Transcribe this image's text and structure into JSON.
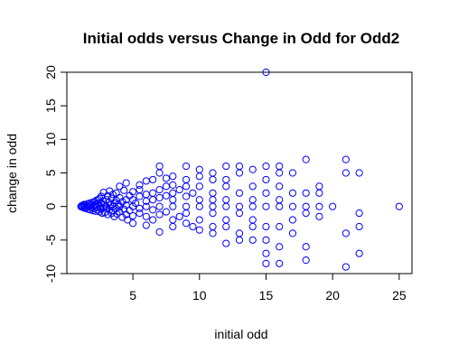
{
  "chart_data": {
    "type": "scatter",
    "title": "Initial odds versus Change in Odd for Odd2",
    "xlabel": "initial odd",
    "ylabel": "change in odd",
    "xlim": [
      0.04,
      25.96
    ],
    "ylim": [
      -10.0,
      20.0
    ],
    "x_ticks": [
      5,
      10,
      15,
      20,
      25
    ],
    "y_ticks": [
      -10,
      -5,
      0,
      5,
      10,
      15,
      20
    ],
    "x_tick_labels": [
      "5",
      "10",
      "15",
      "20",
      "25"
    ],
    "y_tick_labels": [
      "-10",
      "-5",
      "0",
      "5",
      "10",
      "15",
      "20"
    ],
    "marker": "open-circle",
    "color": "#0000ff",
    "grid": false,
    "legend": "none",
    "points": [
      [
        1.1,
        0.0
      ],
      [
        1.15,
        0.1
      ],
      [
        1.2,
        -0.1
      ],
      [
        1.25,
        0.2
      ],
      [
        1.3,
        -0.2
      ],
      [
        1.35,
        0.3
      ],
      [
        1.4,
        0.0
      ],
      [
        1.45,
        -0.3
      ],
      [
        1.5,
        0.2
      ],
      [
        1.55,
        -0.1
      ],
      [
        1.6,
        0.4
      ],
      [
        1.65,
        -0.4
      ],
      [
        1.7,
        0.1
      ],
      [
        1.75,
        0.5
      ],
      [
        1.8,
        -0.5
      ],
      [
        1.85,
        0.2
      ],
      [
        1.9,
        -0.2
      ],
      [
        1.95,
        0.6
      ],
      [
        2.0,
        0.0
      ],
      [
        2.0,
        -0.6
      ],
      [
        2.1,
        0.7
      ],
      [
        2.1,
        -0.3
      ],
      [
        2.2,
        0.3
      ],
      [
        2.2,
        -0.7
      ],
      [
        2.25,
        0.9
      ],
      [
        2.3,
        -0.1
      ],
      [
        2.37,
        0.5
      ],
      [
        2.37,
        -0.5
      ],
      [
        2.4,
        1.0
      ],
      [
        2.5,
        0.0
      ],
      [
        2.5,
        -0.8
      ],
      [
        2.5,
        1.2
      ],
      [
        2.6,
        0.4
      ],
      [
        2.62,
        -0.4
      ],
      [
        2.62,
        1.5
      ],
      [
        2.7,
        -1.0
      ],
      [
        2.75,
        0.8
      ],
      [
        2.75,
        -0.2
      ],
      [
        2.8,
        2.1
      ],
      [
        2.88,
        0.3
      ],
      [
        2.88,
        -0.9
      ],
      [
        3.0,
        1.0
      ],
      [
        3.0,
        -0.3
      ],
      [
        3.0,
        0.0
      ],
      [
        3.1,
        1.6
      ],
      [
        3.1,
        -1.2
      ],
      [
        3.2,
        0.6
      ],
      [
        3.25,
        -0.5
      ],
      [
        3.25,
        2.3
      ],
      [
        3.3,
        0.2
      ],
      [
        3.4,
        -1.0
      ],
      [
        3.4,
        1.2
      ],
      [
        3.5,
        0.0
      ],
      [
        3.5,
        -0.6
      ],
      [
        3.5,
        1.8
      ],
      [
        3.6,
        0.5
      ],
      [
        3.6,
        -1.5
      ],
      [
        3.75,
        0.9
      ],
      [
        3.75,
        -0.3
      ],
      [
        3.75,
        2.0
      ],
      [
        3.8,
        -1.1
      ],
      [
        3.9,
        0.3
      ],
      [
        4.0,
        1.3
      ],
      [
        4.0,
        -0.8
      ],
      [
        4.0,
        3.0
      ],
      [
        4.0,
        0.0
      ],
      [
        4.2,
        -1.6
      ],
      [
        4.2,
        0.7
      ],
      [
        4.33,
        2.4
      ],
      [
        4.33,
        -0.4
      ],
      [
        4.5,
        1.0
      ],
      [
        4.5,
        -1.2
      ],
      [
        4.5,
        3.5
      ],
      [
        4.5,
        0.2
      ],
      [
        4.6,
        -2.0
      ],
      [
        4.75,
        1.6
      ],
      [
        4.75,
        -0.6
      ],
      [
        5.0,
        0.0
      ],
      [
        5.0,
        2.2
      ],
      [
        5.0,
        -1.4
      ],
      [
        5.0,
        1.0
      ],
      [
        5.0,
        -2.5
      ],
      [
        5.2,
        0.5
      ],
      [
        5.5,
        1.5
      ],
      [
        5.5,
        -1.0
      ],
      [
        5.5,
        3.2
      ],
      [
        5.5,
        -0.3
      ],
      [
        5.5,
        2.5
      ],
      [
        6.0,
        0.0
      ],
      [
        6.0,
        1.8
      ],
      [
        6.0,
        -1.5
      ],
      [
        6.0,
        3.8
      ],
      [
        6.0,
        -2.8
      ],
      [
        6.0,
        0.8
      ],
      [
        6.5,
        2.0
      ],
      [
        6.5,
        -0.5
      ],
      [
        6.5,
        4.0
      ],
      [
        6.5,
        -2.0
      ],
      [
        6.5,
        1.0
      ],
      [
        7.0,
        0.0
      ],
      [
        7.0,
        2.5
      ],
      [
        7.0,
        -1.2
      ],
      [
        7.0,
        5.0
      ],
      [
        7.0,
        -3.8
      ],
      [
        7.0,
        6.0
      ],
      [
        7.0,
        1.3
      ],
      [
        7.5,
        3.0
      ],
      [
        7.5,
        -0.8
      ],
      [
        7.5,
        4.2
      ],
      [
        7.5,
        1.6
      ],
      [
        8.0,
        0.0
      ],
      [
        8.0,
        2.0
      ],
      [
        8.0,
        -2.0
      ],
      [
        8.0,
        4.5
      ],
      [
        8.0,
        -3.0
      ],
      [
        8.0,
        1.0
      ],
      [
        8.0,
        3.2
      ],
      [
        8.5,
        2.5
      ],
      [
        8.5,
        -1.5
      ],
      [
        9.0,
        0.0
      ],
      [
        9.0,
        3.0
      ],
      [
        9.0,
        -2.5
      ],
      [
        9.0,
        6.0
      ],
      [
        9.0,
        -1.0
      ],
      [
        9.0,
        4.0
      ],
      [
        9.0,
        1.5
      ],
      [
        9.5,
        -3.0
      ],
      [
        9.5,
        2.0
      ],
      [
        10.0,
        0.0
      ],
      [
        10.0,
        4.5
      ],
      [
        10.0,
        -2.0
      ],
      [
        10.0,
        5.5
      ],
      [
        10.0,
        1.0
      ],
      [
        10.0,
        -3.5
      ],
      [
        10.0,
        3.0
      ],
      [
        11.0,
        0.0
      ],
      [
        11.0,
        2.0
      ],
      [
        11.0,
        -1.0
      ],
      [
        11.0,
        4.0
      ],
      [
        11.0,
        -3.0
      ],
      [
        11.0,
        5.0
      ],
      [
        11.0,
        1.0
      ],
      [
        11.0,
        -4.0
      ],
      [
        12.0,
        0.0
      ],
      [
        12.0,
        3.0
      ],
      [
        12.0,
        -2.0
      ],
      [
        12.0,
        6.0
      ],
      [
        12.0,
        -3.0
      ],
      [
        12.0,
        1.0
      ],
      [
        12.0,
        4.0
      ],
      [
        12.0,
        -5.5
      ],
      [
        13.0,
        0.0
      ],
      [
        13.0,
        2.0
      ],
      [
        13.0,
        -4.0
      ],
      [
        13.0,
        5.0
      ],
      [
        13.0,
        -1.0
      ],
      [
        13.0,
        6.0
      ],
      [
        13.0,
        -5.0
      ],
      [
        14.0,
        0.0
      ],
      [
        14.0,
        3.0
      ],
      [
        14.0,
        -2.0
      ],
      [
        14.0,
        5.5
      ],
      [
        14.0,
        -3.0
      ],
      [
        14.0,
        1.0
      ],
      [
        14.0,
        -5.0
      ],
      [
        15.0,
        0.0
      ],
      [
        15.0,
        20.0
      ],
      [
        15.0,
        -8.5
      ],
      [
        15.0,
        4.0
      ],
      [
        15.0,
        -3.0
      ],
      [
        15.0,
        6.0
      ],
      [
        15.0,
        2.0
      ],
      [
        15.0,
        -5.0
      ],
      [
        15.0,
        -7.0
      ],
      [
        16.0,
        0.0
      ],
      [
        16.0,
        3.0
      ],
      [
        16.0,
        -3.0
      ],
      [
        16.0,
        5.0
      ],
      [
        16.0,
        -6.0
      ],
      [
        16.0,
        1.0
      ],
      [
        16.0,
        -8.5
      ],
      [
        16.0,
        6.0
      ],
      [
        17.0,
        0.0
      ],
      [
        17.0,
        2.0
      ],
      [
        17.0,
        -2.0
      ],
      [
        17.0,
        5.0
      ],
      [
        17.0,
        -4.0
      ],
      [
        18.0,
        7.0
      ],
      [
        18.0,
        -6.0
      ],
      [
        18.0,
        0.0
      ],
      [
        18.0,
        -8.0
      ],
      [
        18.0,
        2.0
      ],
      [
        18.0,
        -1.0
      ],
      [
        19.0,
        3.0
      ],
      [
        19.0,
        0.0
      ],
      [
        19.0,
        -1.5
      ],
      [
        19.0,
        2.0
      ],
      [
        20.0,
        0.0
      ],
      [
        21.0,
        7.0
      ],
      [
        21.0,
        5.0
      ],
      [
        21.0,
        -4.0
      ],
      [
        21.0,
        -9.0
      ],
      [
        22.0,
        5.0
      ],
      [
        22.0,
        -1.0
      ],
      [
        22.0,
        -3.0
      ],
      [
        22.0,
        -7.0
      ],
      [
        25.0,
        0.0
      ]
    ]
  }
}
